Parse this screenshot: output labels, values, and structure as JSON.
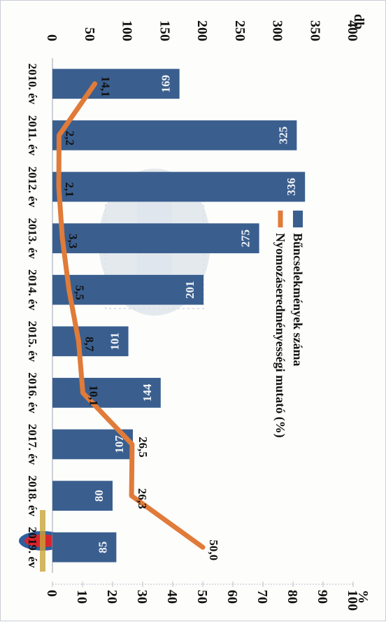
{
  "chart_data": {
    "type": "bar+line",
    "orientation": "rotated-90-cw",
    "categories": [
      "2010. év",
      "2011. év",
      "2012. év",
      "2013. év",
      "2014. év",
      "2015. év",
      "2016. év",
      "2017. év",
      "2018. év",
      "2019. év"
    ],
    "series": [
      {
        "name": "Bűncselekmények száma",
        "kind": "bar",
        "axis": "left",
        "values": [
          169,
          325,
          336,
          275,
          201,
          101,
          144,
          107,
          80,
          85
        ],
        "labels": [
          "169",
          "325",
          "336",
          "275",
          "201",
          "101",
          "144",
          "107",
          "80",
          "85"
        ],
        "color": "#3a5f8f"
      },
      {
        "name": "Nyomozáseredményességi mutató (%)",
        "kind": "line",
        "axis": "right",
        "values": [
          14.1,
          2.2,
          2.1,
          3.3,
          5.5,
          8.7,
          10.1,
          26.5,
          26.3,
          50.0
        ],
        "labels": [
          "14,1",
          "2,2",
          "2,1",
          "3,3",
          "5,5",
          "8,7",
          "10,1",
          "26,5",
          "26,3",
          "50,0"
        ],
        "color": "#e07b39"
      }
    ],
    "left_axis": {
      "label": "db",
      "range": [
        0,
        400
      ],
      "ticks": [
        "0",
        "50",
        "100",
        "150",
        "200",
        "250",
        "300",
        "350",
        "400"
      ]
    },
    "right_axis": {
      "label": "%",
      "range": [
        0,
        100
      ],
      "ticks": [
        "0",
        "10",
        "20",
        "30",
        "40",
        "50",
        "60",
        "70",
        "80",
        "90",
        "100"
      ]
    },
    "legend": {
      "placement": "top-left"
    }
  }
}
